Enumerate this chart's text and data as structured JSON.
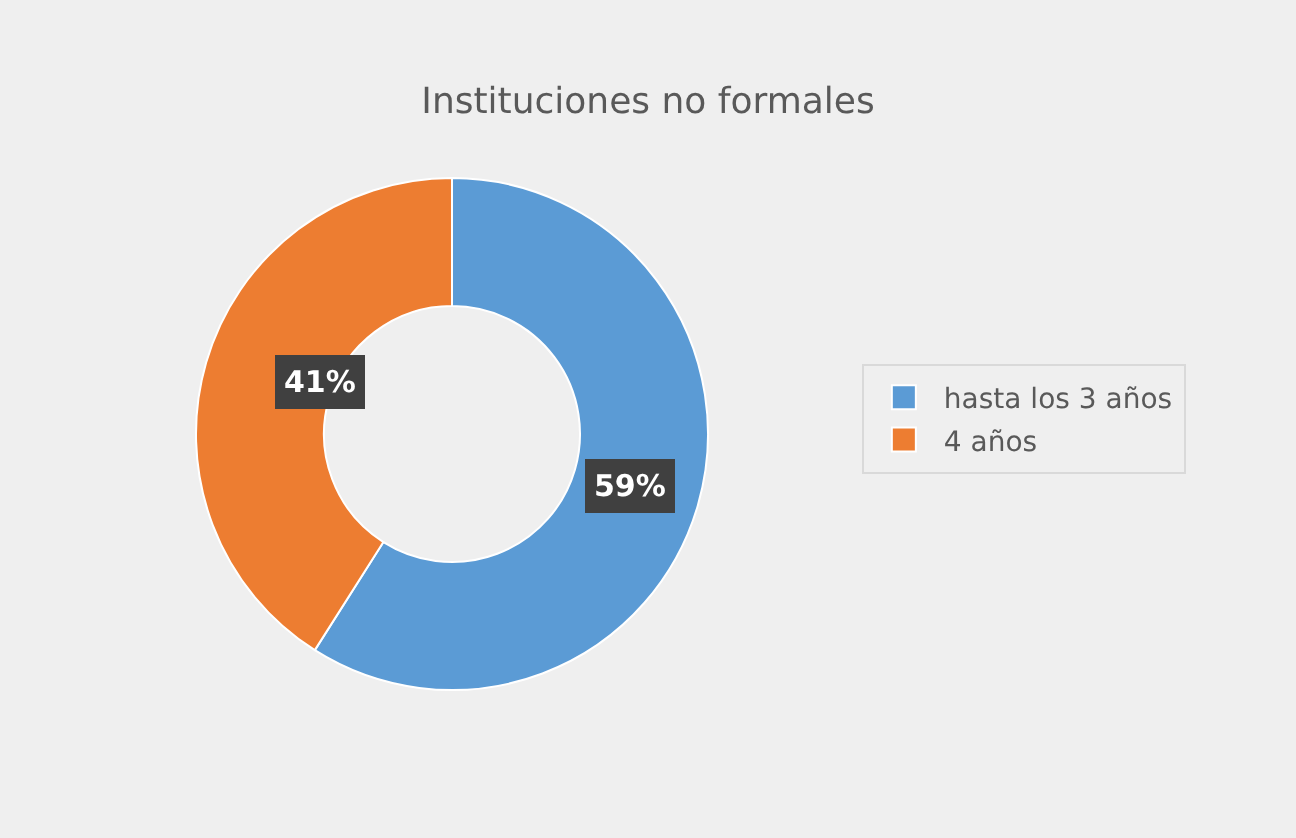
{
  "chart_data": {
    "type": "donut",
    "title": "Instituciones no formales",
    "categories": [
      "hasta los 3 años",
      "4 años"
    ],
    "values": [
      59,
      41
    ],
    "colors": [
      "#5b9bd5",
      "#ed7d31"
    ],
    "value_labels": [
      "59%",
      "41%"
    ],
    "legend": "right"
  }
}
